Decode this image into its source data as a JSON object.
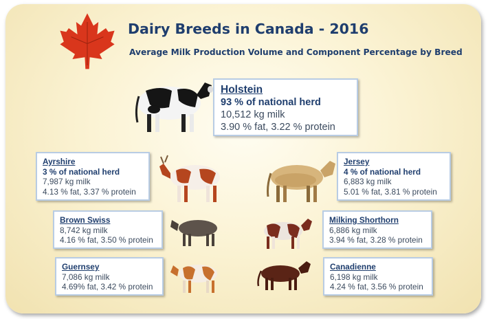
{
  "header": {
    "title": "Dairy Breeds in Canada - 2016",
    "subtitle": "Average Milk Production Volume and Component Percentage by Breed"
  },
  "colors": {
    "title_blue": "#1f3e6e",
    "maple_red": "#d9361c",
    "card_border": "#b8cce4"
  },
  "breeds": {
    "holstein": {
      "name": "Holstein",
      "herd": "93 % of national herd",
      "milk": "10,512 kg milk",
      "components": "3.90 % fat, 3.22 % protein",
      "icon": "holstein-cow-icon"
    },
    "ayrshire": {
      "name": "Ayrshire",
      "herd": "3 % of national herd",
      "milk": "7,987 kg milk",
      "components": "4.13 % fat, 3.37 % protein",
      "icon": "ayrshire-cow-icon"
    },
    "jersey": {
      "name": "Jersey",
      "herd": "4 % of national herd",
      "milk": "6,883 kg milk",
      "components": "5.01 % fat, 3.81 % protein",
      "icon": "jersey-cow-icon"
    },
    "brown_swiss": {
      "name": "Brown Swiss",
      "milk": "8,742 kg milk",
      "components": "4.16 % fat, 3.50 % protein",
      "icon": "brown-swiss-cow-icon"
    },
    "milking_shorthorn": {
      "name": "Milking Shorthorn",
      "milk": "6,886 kg milk",
      "components": "3.94 % fat, 3.28 % protein",
      "icon": "milking-shorthorn-cow-icon"
    },
    "guernsey": {
      "name": "Guernsey",
      "milk": "7,086 kg milk",
      "components": "4.69% fat, 3.42 % protein",
      "icon": "guernsey-cow-icon"
    },
    "canadienne": {
      "name": "Canadienne",
      "milk": "6,198 kg milk",
      "components": "4.24 % fat, 3.56 % protein",
      "icon": "canadienne-cow-icon"
    }
  }
}
